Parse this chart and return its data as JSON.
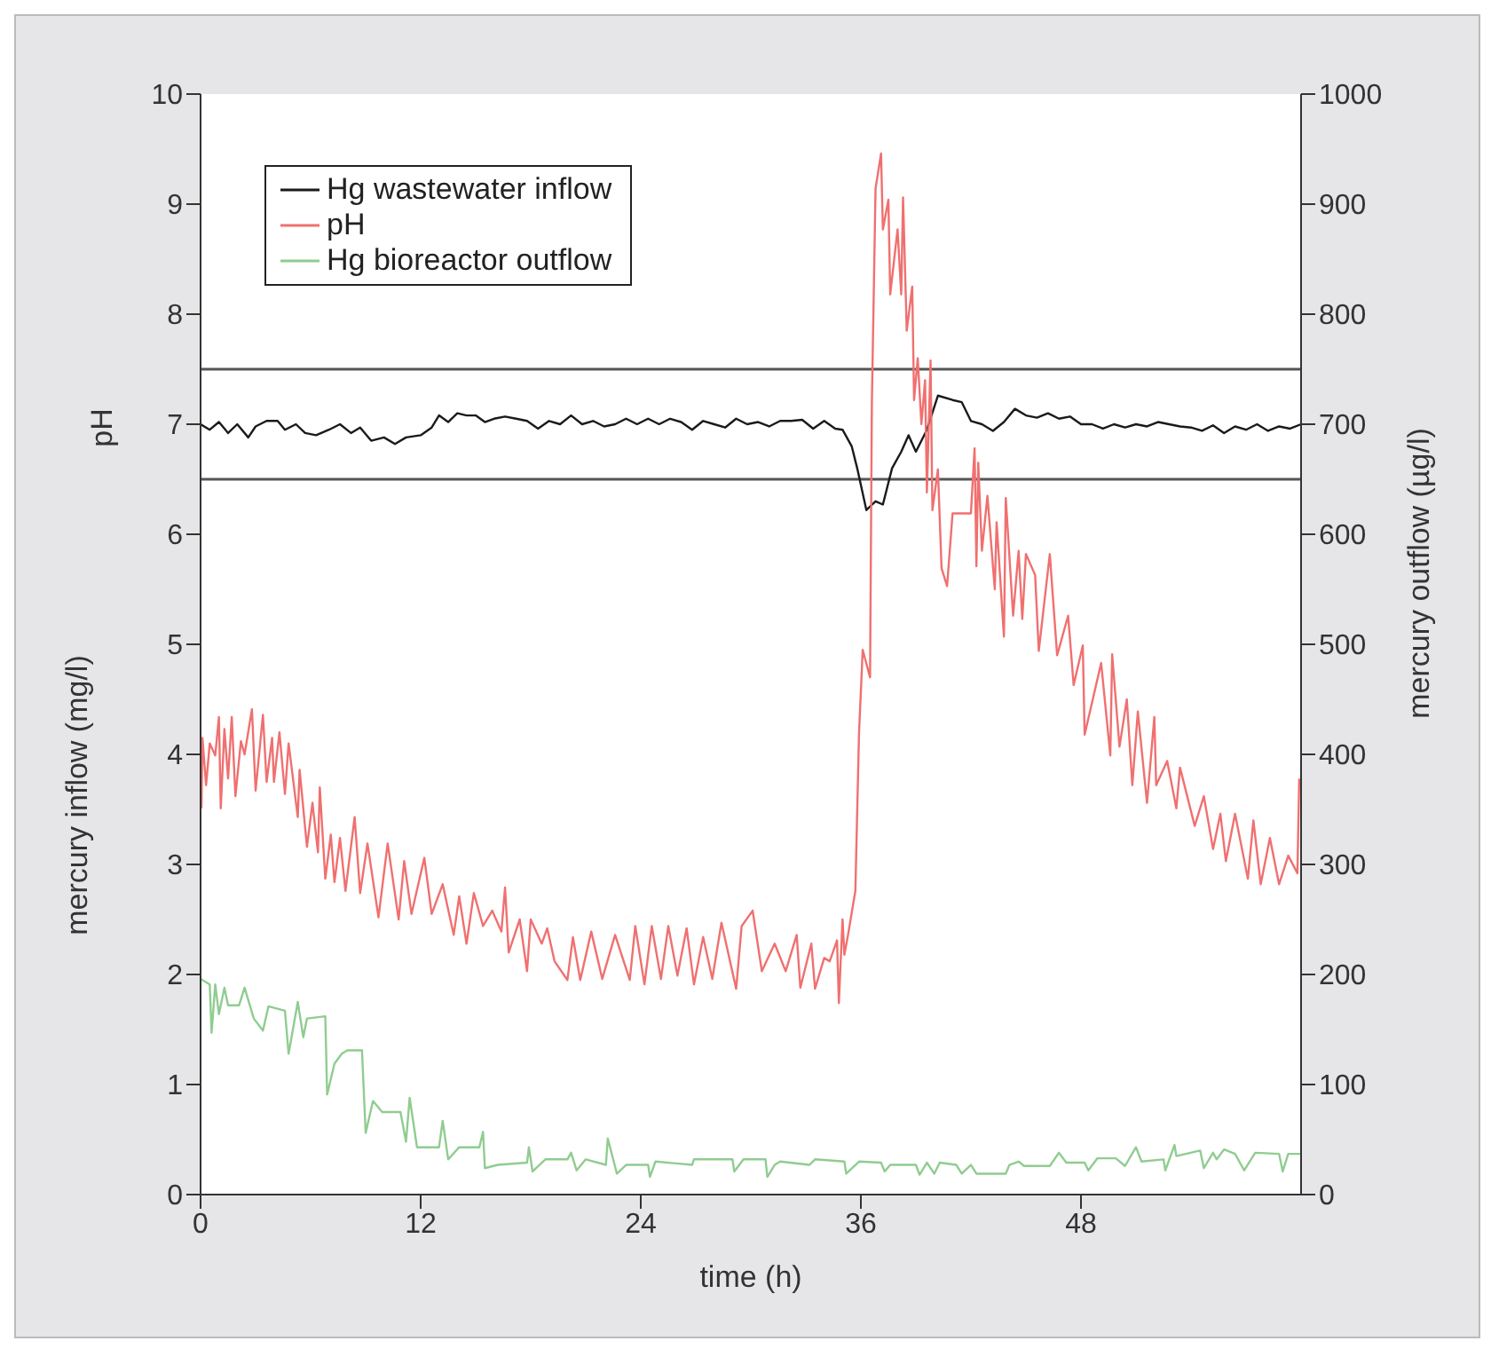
{
  "chart_data": {
    "type": "line",
    "xlabel": "time (h)",
    "ylabel": "mercury inflow (mg/l)",
    "y2label": "mercury outflow (µg/l)",
    "annotations": [
      "pH"
    ],
    "xlim": [
      0,
      60
    ],
    "xticks": [
      0,
      12,
      24,
      36,
      48
    ],
    "ylim": [
      0,
      10
    ],
    "yticks": [
      0,
      1,
      2,
      3,
      4,
      5,
      6,
      7,
      8,
      9,
      10
    ],
    "y2lim": [
      0,
      1000
    ],
    "y2ticks": [
      0,
      100,
      200,
      300,
      400,
      500,
      600,
      700,
      800,
      900,
      1000
    ],
    "grid": false,
    "legend": "top left",
    "marker": "none",
    "line_style": "solid",
    "ref_lines": [
      {
        "axis": "y",
        "value": 7.5,
        "color": "#555555"
      },
      {
        "axis": "y",
        "value": 6.5,
        "color": "#555555"
      }
    ],
    "series": [
      {
        "name": "Hg wastewater inflow",
        "color": "#1a1a1a",
        "x": [
          0,
          0.5,
          1.0,
          1.5,
          2.0,
          2.6,
          3.0,
          3.6,
          4.2,
          4.6,
          5.2,
          5.7,
          6.3,
          7.0,
          7.6,
          8.2,
          8.7,
          9.3,
          10.0,
          10.6,
          11.2,
          12.0,
          12.6,
          13.0,
          13.5,
          14.0,
          14.5,
          15.0,
          15.5,
          16.0,
          16.6,
          17.2,
          17.8,
          18.4,
          19.0,
          19.6,
          20.2,
          20.8,
          21.4,
          22.0,
          22.6,
          23.2,
          23.8,
          24.4,
          25.0,
          25.6,
          26.2,
          26.8,
          27.4,
          28.0,
          28.6,
          29.2,
          29.8,
          30.4,
          31.0,
          31.6,
          32.2,
          32.8,
          33.4,
          34.0,
          34.6,
          35.0,
          35.5,
          35.8,
          36.3,
          36.8,
          37.2,
          37.7,
          38.2,
          38.6,
          39.0,
          39.6,
          40.2,
          41.0,
          41.5,
          42.0,
          42.6,
          43.2,
          43.8,
          44.4,
          45.0,
          45.6,
          46.2,
          46.8,
          47.4,
          48.0,
          48.6,
          49.2,
          49.8,
          50.4,
          51.0,
          51.6,
          52.2,
          52.8,
          53.4,
          54.0,
          54.6,
          55.2,
          55.8,
          56.4,
          57.0,
          57.6,
          58.2,
          58.8,
          59.4,
          60.0
        ],
        "values": [
          7.0,
          6.95,
          7.02,
          6.92,
          7.0,
          6.88,
          6.98,
          7.03,
          7.03,
          6.95,
          7.0,
          6.92,
          6.9,
          6.95,
          7.0,
          6.92,
          6.97,
          6.85,
          6.88,
          6.82,
          6.88,
          6.9,
          6.97,
          7.08,
          7.02,
          7.1,
          7.08,
          7.08,
          7.02,
          7.05,
          7.07,
          7.05,
          7.03,
          6.96,
          7.03,
          7.0,
          7.08,
          7.0,
          7.03,
          6.98,
          7.0,
          7.05,
          7.0,
          7.05,
          7.0,
          7.05,
          7.02,
          6.95,
          7.03,
          7.0,
          6.97,
          7.05,
          7.0,
          7.02,
          6.98,
          7.03,
          7.03,
          7.04,
          6.96,
          7.03,
          6.96,
          6.95,
          6.8,
          6.6,
          6.22,
          6.3,
          6.27,
          6.6,
          6.75,
          6.9,
          6.75,
          6.95,
          7.26,
          7.22,
          7.2,
          7.03,
          7.0,
          6.94,
          7.02,
          7.14,
          7.08,
          7.06,
          7.1,
          7.05,
          7.07,
          7.0,
          7.0,
          6.96,
          7.0,
          6.97,
          7.0,
          6.98,
          7.02,
          7.0,
          6.98,
          6.97,
          6.94,
          6.99,
          6.92,
          6.98,
          6.95,
          7.0,
          6.94,
          6.98,
          6.96,
          7.0
        ]
      },
      {
        "name": "pH",
        "color": "#f07070",
        "x": [
          0.05,
          0.1,
          0.3,
          0.5,
          0.8,
          1.0,
          1.1,
          1.3,
          1.5,
          1.7,
          1.9,
          2.2,
          2.4,
          2.8,
          3.0,
          3.4,
          3.6,
          3.9,
          4.0,
          4.3,
          4.6,
          4.8,
          5.3,
          5.4,
          5.8,
          6.1,
          6.4,
          6.5,
          6.8,
          7.1,
          7.3,
          7.6,
          7.9,
          8.4,
          8.7,
          9.1,
          9.7,
          10.2,
          10.8,
          11.1,
          11.5,
          12.2,
          12.6,
          13.2,
          13.8,
          14.1,
          14.5,
          14.9,
          15.4,
          15.9,
          16.4,
          16.6,
          16.8,
          17.4,
          17.8,
          18.0,
          18.6,
          18.9,
          19.3,
          20.0,
          20.3,
          20.7,
          21.3,
          21.9,
          22.6,
          23.4,
          23.7,
          24.2,
          24.6,
          25.1,
          25.5,
          26.0,
          26.5,
          26.9,
          27.4,
          27.9,
          28.4,
          29.2,
          29.5,
          30.1,
          30.6,
          31.3,
          31.9,
          32.5,
          32.7,
          33.3,
          33.5,
          34.0,
          34.3,
          34.7,
          34.8,
          35.0,
          35.1,
          35.3,
          35.7,
          35.9,
          36.1,
          36.5,
          36.6,
          36.8,
          37.1,
          37.2,
          37.5,
          37.6,
          38.0,
          38.2,
          38.3,
          38.5,
          38.8,
          38.9,
          39.1,
          39.3,
          39.5,
          39.6,
          39.8,
          39.9,
          40.2,
          40.4,
          40.7,
          41.0,
          42.0,
          42.2,
          42.3,
          42.4,
          42.6,
          42.9,
          43.3,
          43.4,
          43.8,
          43.9,
          44.3,
          44.6,
          44.8,
          45.0,
          45.5,
          45.7,
          46.3,
          46.7,
          47.3,
          47.6,
          48.1,
          48.2,
          49.1,
          49.6,
          49.7,
          50.1,
          50.5,
          50.8,
          51.1,
          51.6,
          52.0,
          52.1,
          52.7,
          53.2,
          53.4,
          54.2,
          54.7,
          55.2,
          55.6,
          55.9,
          56.4,
          57.1,
          57.4,
          57.8,
          58.3,
          58.8,
          59.3,
          59.8,
          59.9
        ],
        "values": [
          3.51,
          4.15,
          3.72,
          4.1,
          3.99,
          4.34,
          3.51,
          4.23,
          3.78,
          4.34,
          3.62,
          4.12,
          4.0,
          4.41,
          3.67,
          4.36,
          3.75,
          4.15,
          3.75,
          4.2,
          3.64,
          4.1,
          3.43,
          3.86,
          3.16,
          3.56,
          3.11,
          3.7,
          2.87,
          3.27,
          2.84,
          3.24,
          2.76,
          3.43,
          2.74,
          3.19,
          2.52,
          3.19,
          2.5,
          3.03,
          2.55,
          3.06,
          2.55,
          2.82,
          2.36,
          2.71,
          2.28,
          2.74,
          2.44,
          2.58,
          2.39,
          2.79,
          2.2,
          2.5,
          2.03,
          2.5,
          2.28,
          2.42,
          2.12,
          1.95,
          2.34,
          1.95,
          2.39,
          1.96,
          2.36,
          1.95,
          2.44,
          1.91,
          2.44,
          1.96,
          2.44,
          1.99,
          2.42,
          1.91,
          2.34,
          1.96,
          2.47,
          1.87,
          2.44,
          2.58,
          2.03,
          2.28,
          2.03,
          2.36,
          1.88,
          2.28,
          1.87,
          2.15,
          2.12,
          2.31,
          1.74,
          2.5,
          2.18,
          2.36,
          2.76,
          4.2,
          4.95,
          4.7,
          7.2,
          9.14,
          9.46,
          8.77,
          9.04,
          8.18,
          8.77,
          8.18,
          9.06,
          7.85,
          8.25,
          7.22,
          7.6,
          7.0,
          7.4,
          6.38,
          7.58,
          6.22,
          6.59,
          5.69,
          5.53,
          6.19,
          6.19,
          6.78,
          5.71,
          6.65,
          5.85,
          6.35,
          5.5,
          6.11,
          5.07,
          6.33,
          5.26,
          5.85,
          5.23,
          5.82,
          5.63,
          4.94,
          5.82,
          4.9,
          5.26,
          4.63,
          4.99,
          4.18,
          4.83,
          3.99,
          4.91,
          4.07,
          4.5,
          3.72,
          4.39,
          3.56,
          4.34,
          3.72,
          3.94,
          3.51,
          3.88,
          3.35,
          3.62,
          3.14,
          3.46,
          3.03,
          3.46,
          2.87,
          3.4,
          2.82,
          3.24,
          2.82,
          3.08,
          2.92,
          3.78
        ]
      },
      {
        "name": "Hg bioreactor outflow",
        "color": "#90cc90",
        "axis": "y2",
        "x": [
          0.0,
          0.5,
          0.6,
          0.8,
          1.0,
          1.3,
          1.5,
          2.1,
          2.4,
          2.9,
          3.4,
          3.7,
          4.6,
          4.8,
          5.3,
          5.6,
          5.8,
          6.8,
          6.9,
          7.3,
          7.7,
          8.0,
          8.8,
          9.0,
          9.4,
          9.9,
          10.9,
          11.2,
          11.4,
          11.8,
          13.0,
          13.2,
          13.5,
          14.1,
          15.2,
          15.4,
          15.5,
          16.2,
          17.8,
          17.9,
          18.1,
          18.8,
          20.0,
          20.2,
          20.5,
          21.0,
          22.1,
          22.2,
          22.7,
          23.2,
          24.4,
          24.5,
          24.8,
          26.8,
          26.9,
          29.0,
          29.1,
          29.6,
          30.8,
          30.9,
          31.3,
          31.6,
          33.2,
          33.5,
          35.1,
          35.2,
          35.9,
          37.1,
          37.3,
          37.6,
          39.0,
          39.2,
          39.6,
          40.0,
          40.3,
          41.2,
          41.5,
          42.0,
          42.3,
          43.9,
          44.1,
          44.6,
          44.9,
          46.3,
          46.8,
          47.2,
          48.2,
          48.4,
          48.9,
          49.9,
          50.4,
          51.0,
          51.3,
          52.5,
          52.6,
          53.1,
          53.2,
          54.5,
          54.7,
          55.2,
          55.4,
          55.8,
          56.4,
          56.9,
          57.5,
          58.8,
          59.0,
          59.3,
          60.0
        ],
        "values": [
          196,
          191,
          147,
          191,
          164,
          188,
          172,
          172,
          188,
          160,
          149,
          171,
          167,
          128,
          175,
          143,
          160,
          162,
          91,
          119,
          128,
          131,
          131,
          56,
          85,
          75,
          75,
          48,
          88,
          43,
          43,
          67,
          32,
          43,
          43,
          57,
          24,
          27,
          29,
          43,
          21,
          32,
          32,
          38,
          22,
          32,
          27,
          51,
          19,
          27,
          27,
          16,
          30,
          27,
          32,
          32,
          21,
          32,
          32,
          16,
          27,
          30,
          27,
          32,
          30,
          19,
          30,
          29,
          21,
          27,
          27,
          18,
          29,
          19,
          29,
          27,
          19,
          27,
          19,
          19,
          27,
          30,
          26,
          26,
          38,
          29,
          29,
          22,
          33,
          33,
          26,
          43,
          30,
          32,
          22,
          45,
          35,
          40,
          24,
          38,
          32,
          41,
          37,
          22,
          38,
          37,
          21,
          37,
          37
        ]
      }
    ]
  }
}
